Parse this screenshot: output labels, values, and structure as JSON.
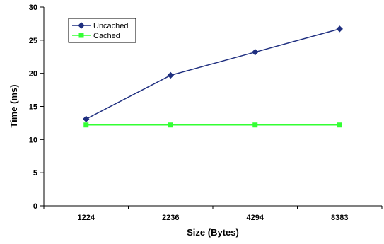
{
  "chart_data": {
    "type": "line",
    "title": "",
    "xlabel": "Size (Bytes)",
    "ylabel": "Time (ms)",
    "categories": [
      "1224",
      "2236",
      "4294",
      "8383"
    ],
    "ylim": [
      0,
      30
    ],
    "yticks": [
      "0",
      "5",
      "10",
      "15",
      "20",
      "25",
      "30"
    ],
    "grid": false,
    "legend_position": "top-left",
    "series": [
      {
        "name": "Uncached",
        "values": [
          13.1,
          19.7,
          23.2,
          26.7
        ],
        "color": "#1f2f80",
        "marker": "diamond"
      },
      {
        "name": "Cached",
        "values": [
          12.2,
          12.2,
          12.2,
          12.2
        ],
        "color": "#33ff33",
        "marker": "square"
      }
    ]
  }
}
